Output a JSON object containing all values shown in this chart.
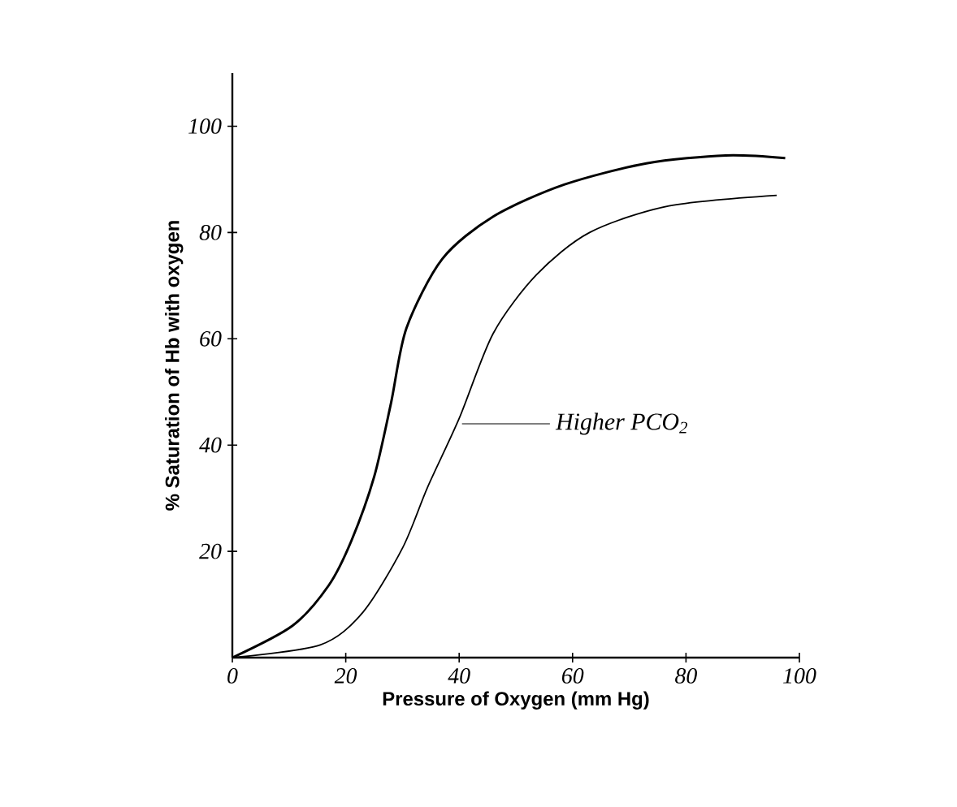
{
  "chart_data": {
    "type": "line",
    "xlabel": "Pressure of Oxygen (mm Hg)",
    "ylabel": "% Saturation of Hb with oxygen",
    "xlim": [
      0,
      100
    ],
    "ylim": [
      0,
      110
    ],
    "xticks": [
      0,
      20,
      40,
      60,
      80,
      100
    ],
    "yticks": [
      20,
      40,
      60,
      80,
      100
    ],
    "grid": false,
    "legend": false,
    "marker": "none",
    "line_style": "solid",
    "series": [
      {
        "color": "#000000",
        "x": [
          0,
          10.6,
          17,
          21,
          25,
          28,
          30.7,
          37,
          46,
          58.5,
          73,
          87,
          97.5
        ],
        "values": [
          0,
          6,
          13.6,
          22,
          34,
          48,
          62,
          75,
          83,
          89,
          93,
          94.5,
          94
        ]
      },
      {
        "color": "#000000",
        "x": [
          0,
          15.5,
          23,
          30,
          34.4,
          40,
          46,
          53.6,
          63,
          77,
          96
        ],
        "values": [
          0,
          2.4,
          8.5,
          20.6,
          32,
          45,
          61,
          72,
          80,
          85,
          87
        ]
      }
    ],
    "annotations": [
      "Higher PCO$_{2}$"
    ]
  }
}
